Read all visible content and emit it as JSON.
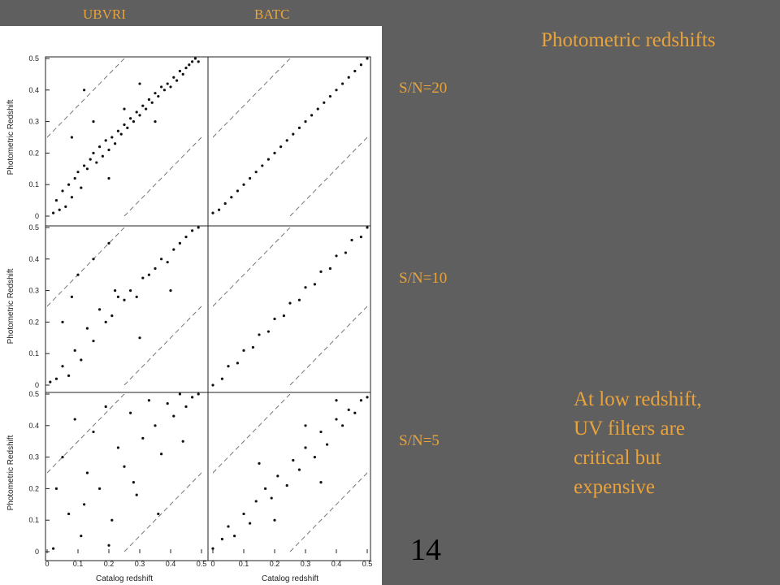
{
  "header": {
    "col_left": "UBVRI",
    "col_right": "BATC",
    "title": "Photometric redshifts"
  },
  "rows": [
    {
      "label": "S/N=20"
    },
    {
      "label": "S/N=10"
    },
    {
      "label": "S/N=5"
    }
  ],
  "note": {
    "lines": [
      "At low redshift,",
      "UV filters are",
      "critical but",
      "expensive"
    ]
  },
  "page_number": "14",
  "colors": {
    "background": "#5f5f5f",
    "accent_text": "#e8a33c",
    "panel": "#ffffff",
    "points": "#111111"
  },
  "chart_data": {
    "type": "scatter",
    "layout": "3x2 grid",
    "xlabel": "Catalog redshift",
    "ylabel": "Photometric Redshift",
    "xlim": [
      0,
      0.5
    ],
    "ylim": [
      0,
      0.5
    ],
    "xticks": [
      "0",
      "0.1",
      "0.2",
      "0.3",
      "0.4",
      "0.5"
    ],
    "yticks": [
      "0",
      "0.1",
      "0.2",
      "0.3",
      "0.4",
      "0.5"
    ],
    "reference_lines": [
      {
        "style": "dashed",
        "x": [
          0,
          0.5
        ],
        "y": [
          0.25,
          0.75
        ]
      },
      {
        "style": "dashed",
        "x": [
          0.25,
          0.75
        ],
        "y": [
          0,
          0.5
        ]
      }
    ],
    "panels": [
      {
        "row": "S/N=20",
        "column": "UBVRI",
        "points": [
          [
            0.02,
            0.01
          ],
          [
            0.03,
            0.05
          ],
          [
            0.04,
            0.02
          ],
          [
            0.05,
            0.08
          ],
          [
            0.06,
            0.03
          ],
          [
            0.07,
            0.1
          ],
          [
            0.08,
            0.06
          ],
          [
            0.09,
            0.12
          ],
          [
            0.1,
            0.14
          ],
          [
            0.11,
            0.09
          ],
          [
            0.12,
            0.16
          ],
          [
            0.13,
            0.15
          ],
          [
            0.14,
            0.18
          ],
          [
            0.15,
            0.2
          ],
          [
            0.16,
            0.17
          ],
          [
            0.17,
            0.22
          ],
          [
            0.18,
            0.19
          ],
          [
            0.19,
            0.24
          ],
          [
            0.2,
            0.21
          ],
          [
            0.21,
            0.25
          ],
          [
            0.22,
            0.23
          ],
          [
            0.23,
            0.27
          ],
          [
            0.24,
            0.26
          ],
          [
            0.25,
            0.29
          ],
          [
            0.26,
            0.28
          ],
          [
            0.27,
            0.31
          ],
          [
            0.28,
            0.3
          ],
          [
            0.29,
            0.33
          ],
          [
            0.3,
            0.32
          ],
          [
            0.31,
            0.35
          ],
          [
            0.32,
            0.34
          ],
          [
            0.33,
            0.37
          ],
          [
            0.34,
            0.36
          ],
          [
            0.35,
            0.39
          ],
          [
            0.36,
            0.38
          ],
          [
            0.37,
            0.41
          ],
          [
            0.38,
            0.4
          ],
          [
            0.39,
            0.42
          ],
          [
            0.4,
            0.41
          ],
          [
            0.41,
            0.44
          ],
          [
            0.42,
            0.43
          ],
          [
            0.43,
            0.46
          ],
          [
            0.44,
            0.45
          ],
          [
            0.45,
            0.47
          ],
          [
            0.46,
            0.48
          ],
          [
            0.47,
            0.49
          ],
          [
            0.48,
            0.5
          ],
          [
            0.49,
            0.49
          ],
          [
            0.12,
            0.4
          ],
          [
            0.15,
            0.3
          ],
          [
            0.08,
            0.25
          ],
          [
            0.3,
            0.42
          ],
          [
            0.2,
            0.12
          ],
          [
            0.25,
            0.34
          ],
          [
            0.35,
            0.3
          ]
        ]
      },
      {
        "row": "S/N=20",
        "column": "BATC",
        "points": [
          [
            0.0,
            0.01
          ],
          [
            0.02,
            0.02
          ],
          [
            0.04,
            0.04
          ],
          [
            0.06,
            0.06
          ],
          [
            0.08,
            0.08
          ],
          [
            0.1,
            0.1
          ],
          [
            0.12,
            0.12
          ],
          [
            0.14,
            0.14
          ],
          [
            0.16,
            0.16
          ],
          [
            0.18,
            0.18
          ],
          [
            0.2,
            0.2
          ],
          [
            0.22,
            0.22
          ],
          [
            0.24,
            0.24
          ],
          [
            0.26,
            0.26
          ],
          [
            0.28,
            0.28
          ],
          [
            0.3,
            0.3
          ],
          [
            0.32,
            0.32
          ],
          [
            0.34,
            0.34
          ],
          [
            0.36,
            0.36
          ],
          [
            0.38,
            0.38
          ],
          [
            0.4,
            0.4
          ],
          [
            0.42,
            0.42
          ],
          [
            0.44,
            0.44
          ],
          [
            0.46,
            0.46
          ],
          [
            0.48,
            0.48
          ],
          [
            0.5,
            0.5
          ]
        ]
      },
      {
        "row": "S/N=10",
        "column": "UBVRI",
        "points": [
          [
            0.01,
            0.01
          ],
          [
            0.03,
            0.02
          ],
          [
            0.05,
            0.06
          ],
          [
            0.07,
            0.03
          ],
          [
            0.09,
            0.11
          ],
          [
            0.11,
            0.08
          ],
          [
            0.13,
            0.18
          ],
          [
            0.15,
            0.14
          ],
          [
            0.17,
            0.24
          ],
          [
            0.19,
            0.2
          ],
          [
            0.21,
            0.22
          ],
          [
            0.23,
            0.28
          ],
          [
            0.25,
            0.27
          ],
          [
            0.27,
            0.3
          ],
          [
            0.29,
            0.28
          ],
          [
            0.31,
            0.34
          ],
          [
            0.33,
            0.35
          ],
          [
            0.35,
            0.37
          ],
          [
            0.37,
            0.4
          ],
          [
            0.39,
            0.39
          ],
          [
            0.41,
            0.43
          ],
          [
            0.43,
            0.45
          ],
          [
            0.45,
            0.47
          ],
          [
            0.47,
            0.49
          ],
          [
            0.49,
            0.5
          ],
          [
            0.1,
            0.35
          ],
          [
            0.2,
            0.45
          ],
          [
            0.08,
            0.28
          ],
          [
            0.3,
            0.15
          ],
          [
            0.15,
            0.4
          ],
          [
            0.22,
            0.3
          ],
          [
            0.4,
            0.3
          ],
          [
            0.05,
            0.2
          ]
        ]
      },
      {
        "row": "S/N=10",
        "column": "BATC",
        "points": [
          [
            0.0,
            0.0
          ],
          [
            0.03,
            0.02
          ],
          [
            0.05,
            0.06
          ],
          [
            0.08,
            0.07
          ],
          [
            0.1,
            0.11
          ],
          [
            0.13,
            0.12
          ],
          [
            0.15,
            0.16
          ],
          [
            0.18,
            0.17
          ],
          [
            0.2,
            0.21
          ],
          [
            0.23,
            0.22
          ],
          [
            0.25,
            0.26
          ],
          [
            0.28,
            0.27
          ],
          [
            0.3,
            0.31
          ],
          [
            0.33,
            0.32
          ],
          [
            0.35,
            0.36
          ],
          [
            0.38,
            0.37
          ],
          [
            0.4,
            0.41
          ],
          [
            0.43,
            0.42
          ],
          [
            0.45,
            0.46
          ],
          [
            0.48,
            0.47
          ],
          [
            0.5,
            0.5
          ]
        ]
      },
      {
        "row": "S/N=5",
        "column": "UBVRI",
        "points": [
          [
            0.02,
            0.01
          ],
          [
            0.05,
            0.3
          ],
          [
            0.07,
            0.12
          ],
          [
            0.09,
            0.42
          ],
          [
            0.11,
            0.05
          ],
          [
            0.13,
            0.25
          ],
          [
            0.15,
            0.38
          ],
          [
            0.17,
            0.2
          ],
          [
            0.19,
            0.46
          ],
          [
            0.21,
            0.1
          ],
          [
            0.23,
            0.33
          ],
          [
            0.25,
            0.27
          ],
          [
            0.27,
            0.44
          ],
          [
            0.29,
            0.18
          ],
          [
            0.31,
            0.36
          ],
          [
            0.33,
            0.48
          ],
          [
            0.35,
            0.4
          ],
          [
            0.37,
            0.31
          ],
          [
            0.39,
            0.47
          ],
          [
            0.41,
            0.43
          ],
          [
            0.43,
            0.5
          ],
          [
            0.45,
            0.46
          ],
          [
            0.47,
            0.49
          ],
          [
            0.49,
            0.5
          ],
          [
            0.03,
            0.2
          ],
          [
            0.12,
            0.15
          ],
          [
            0.2,
            0.02
          ],
          [
            0.28,
            0.22
          ],
          [
            0.36,
            0.12
          ],
          [
            0.44,
            0.35
          ]
        ]
      },
      {
        "row": "S/N=5",
        "column": "BATC",
        "points": [
          [
            0.0,
            0.01
          ],
          [
            0.03,
            0.04
          ],
          [
            0.05,
            0.08
          ],
          [
            0.07,
            0.05
          ],
          [
            0.1,
            0.12
          ],
          [
            0.12,
            0.09
          ],
          [
            0.14,
            0.16
          ],
          [
            0.17,
            0.2
          ],
          [
            0.19,
            0.17
          ],
          [
            0.21,
            0.24
          ],
          [
            0.24,
            0.21
          ],
          [
            0.26,
            0.29
          ],
          [
            0.28,
            0.26
          ],
          [
            0.3,
            0.33
          ],
          [
            0.33,
            0.3
          ],
          [
            0.35,
            0.38
          ],
          [
            0.37,
            0.34
          ],
          [
            0.4,
            0.42
          ],
          [
            0.42,
            0.4
          ],
          [
            0.44,
            0.45
          ],
          [
            0.46,
            0.44
          ],
          [
            0.48,
            0.48
          ],
          [
            0.5,
            0.49
          ],
          [
            0.15,
            0.28
          ],
          [
            0.3,
            0.4
          ],
          [
            0.35,
            0.22
          ],
          [
            0.2,
            0.1
          ],
          [
            0.4,
            0.48
          ]
        ]
      }
    ]
  }
}
